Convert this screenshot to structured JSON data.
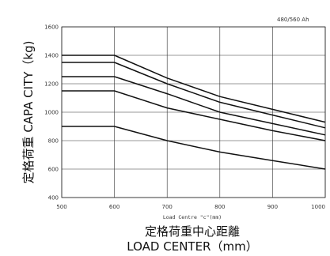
{
  "chart_data": {
    "type": "line",
    "title": "",
    "caption_top_right": "480/560 Ah",
    "xlabel": "Load Centre \"c\"(mm)",
    "xlabel_main_cn": "定格荷重中心距離",
    "xlabel_main_en": "LOAD CENTER（mm）",
    "ylabel": "定格荷重 CAPA CITY（kg)",
    "xlim": [
      500,
      1000
    ],
    "ylim": [
      400,
      1600
    ],
    "x_ticks": [
      "500",
      "600",
      "700",
      "800",
      "900",
      "1000"
    ],
    "y_ticks": [
      "400",
      "600",
      "800",
      "1000",
      "1200",
      "1400",
      "1600"
    ],
    "grid": true,
    "series": [
      {
        "x": [
          500,
          600,
          700,
          800,
          900,
          1000
        ],
        "y": [
          1400,
          1400,
          1240,
          1110,
          1020,
          930
        ]
      },
      {
        "x": [
          500,
          600,
          700,
          800,
          900,
          1000
        ],
        "y": [
          1350,
          1350,
          1200,
          1070,
          980,
          890
        ]
      },
      {
        "x": [
          500,
          600,
          700,
          800,
          900,
          1000
        ],
        "y": [
          1250,
          1250,
          1130,
          1000,
          920,
          840
        ]
      },
      {
        "x": [
          500,
          600,
          700,
          800,
          900,
          1000
        ],
        "y": [
          1150,
          1150,
          1030,
          950,
          870,
          800
        ]
      },
      {
        "x": [
          500,
          600,
          700,
          800,
          900,
          1000
        ],
        "y": [
          900,
          900,
          800,
          720,
          660,
          600
        ]
      }
    ]
  }
}
